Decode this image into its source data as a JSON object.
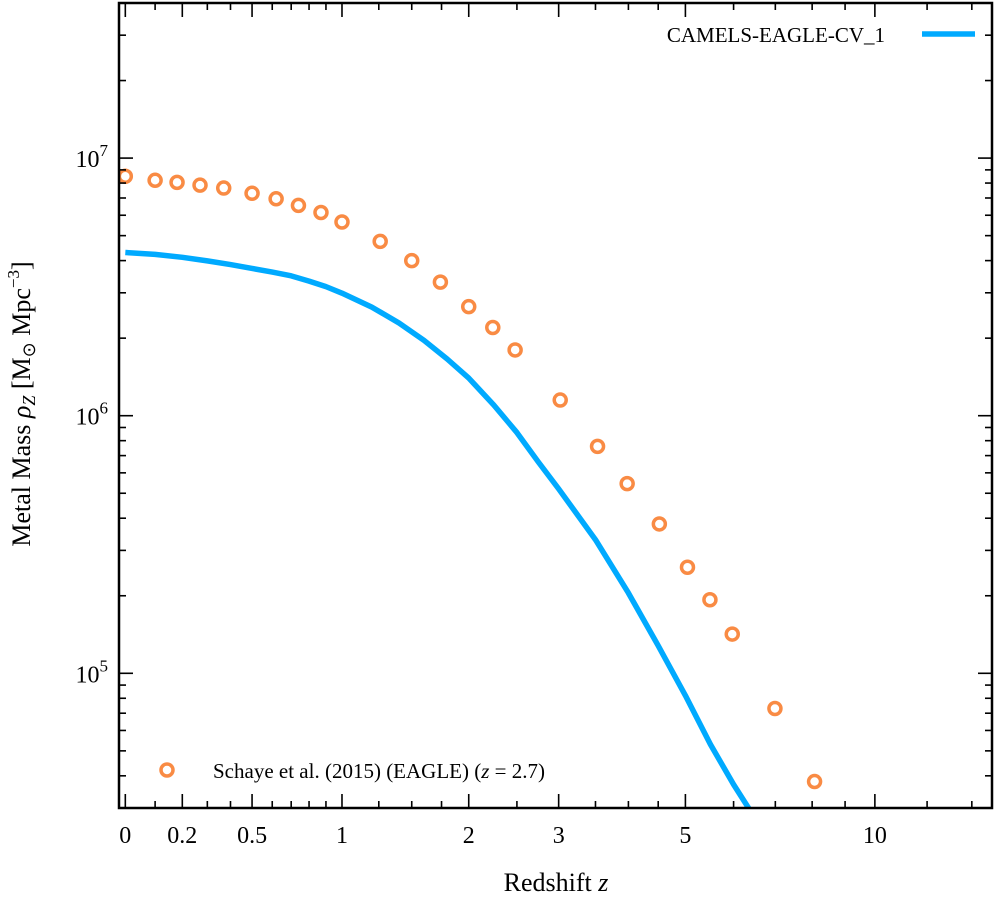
{
  "chart_data": {
    "type": "line",
    "xlabel_text": "Redshift",
    "xlabel_var": "z",
    "ylabel_text": "Metal Mass",
    "ylabel_sym": "ρ",
    "ylabel_sub": "Z",
    "ylabel_unit_open": " [M",
    "ylabel_unit_sun": "⊙",
    "ylabel_unit_mpc": " Mpc",
    "ylabel_unit_exp": "−3",
    "ylabel_unit_close": "]",
    "x_scale": "log(1+z)",
    "y_scale": "log",
    "xlim": [
      -0.02,
      15
    ],
    "ylim": [
      30000,
      40000000
    ],
    "x_ticks": [
      0,
      0.2,
      0.5,
      1,
      2,
      3,
      5,
      10
    ],
    "x_tick_labels": [
      "0",
      "0.2",
      "0.5",
      "1",
      "2",
      "3",
      "5",
      "10"
    ],
    "y_ticks": [
      100000,
      1000000,
      10000000
    ],
    "y_tick_base": "10",
    "y_tick_exps": [
      "5",
      "6",
      "7"
    ],
    "series": [
      {
        "name": "CAMELS-EAGLE-CV_1",
        "kind": "line",
        "color": "#00aaff",
        "x": [
          0,
          0.1,
          0.2,
          0.3,
          0.4,
          0.5,
          0.6,
          0.7,
          0.8,
          0.9,
          1.0,
          1.2,
          1.4,
          1.6,
          1.8,
          2.0,
          2.25,
          2.5,
          2.75,
          3.0,
          3.5,
          4.0,
          4.5,
          5.0,
          5.5,
          6.0,
          6.4
        ],
        "y": [
          4300000,
          4230000,
          4120000,
          3990000,
          3860000,
          3730000,
          3610000,
          3490000,
          3330000,
          3170000,
          2990000,
          2640000,
          2290000,
          1960000,
          1660000,
          1400000,
          1100000,
          860000,
          660000,
          520000,
          330000,
          205000,
          128000,
          82000,
          53000,
          37000,
          29000
        ]
      },
      {
        "name": "Schaye et al. (2015) (EAGLE) (z = 2.7)",
        "name_main": "Schaye et al. (2015) (EAGLE) (",
        "name_var": "z",
        "name_eq": " = 2.7)",
        "kind": "scatter",
        "color": "#f98b44",
        "x": [
          0,
          0.1,
          0.18,
          0.27,
          0.37,
          0.5,
          0.62,
          0.74,
          0.87,
          1.0,
          1.26,
          1.5,
          1.74,
          2.0,
          2.24,
          2.48,
          3.02,
          3.53,
          3.98,
          4.52,
          5.04,
          5.49,
          5.97,
          6.99,
          8.07
        ],
        "y": [
          8500000,
          8200000,
          8050000,
          7850000,
          7650000,
          7300000,
          6950000,
          6550000,
          6150000,
          5650000,
          4750000,
          4000000,
          3300000,
          2650000,
          2200000,
          1800000,
          1150000,
          760000,
          545000,
          380000,
          258000,
          193000,
          142000,
          73000,
          38000
        ]
      }
    ],
    "legend_positions": [
      "top-right",
      "bottom-left"
    ],
    "grid": false
  }
}
